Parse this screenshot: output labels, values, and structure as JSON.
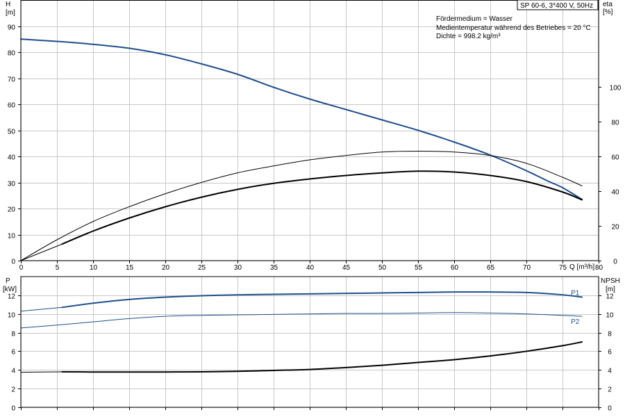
{
  "header": {
    "model": "SP 60-6, 3*400 V, 50Hz",
    "info_lines": [
      "Fördermedium = Wasser",
      "Medientemperatur während des Betriebes = 20 °C",
      "Dichte = 998.2 kg/m³"
    ]
  },
  "colors": {
    "blue": "#1f4e8c",
    "black": "#000000",
    "grid": "#c8c8c8"
  },
  "chart_data": [
    {
      "type": "line",
      "panel": "head_efficiency",
      "xlabel": "Q [m³/h]",
      "x_unit_label": "Q [m³/h]",
      "ylabel": "H",
      "ylabel_unit": "[m]",
      "y2label": "eta",
      "y2label_unit": "[%]",
      "xlim": [
        0,
        80
      ],
      "ylim": [
        0,
        100
      ],
      "y2lim": [
        0,
        150
      ],
      "x_ticks": [
        0,
        5,
        10,
        15,
        20,
        25,
        30,
        35,
        40,
        45,
        50,
        55,
        60,
        65,
        70,
        75,
        80
      ],
      "y_ticks": [
        0,
        10,
        20,
        30,
        40,
        50,
        60,
        70,
        80,
        90
      ],
      "y2_ticks": [
        0,
        20,
        40,
        60,
        80,
        100
      ],
      "grid": true,
      "series": [
        {
          "axis": "left",
          "color": "#1f4e8c",
          "width": 2,
          "x": [
            0,
            5.7,
            10,
            15,
            20,
            25,
            30,
            35,
            40,
            45,
            50,
            55,
            60,
            65,
            70,
            73,
            75,
            77.7
          ],
          "y": [
            85,
            84,
            83,
            81.5,
            79,
            75.5,
            71.5,
            66.5,
            62,
            58,
            54,
            50,
            45.5,
            40.5,
            34.5,
            30.5,
            28,
            23.5
          ]
        },
        {
          "axis": "left",
          "color": "#1f4e8c",
          "width": 1,
          "x": [
            0,
            5.7,
            10,
            15,
            20,
            25,
            30,
            35,
            40,
            45,
            50,
            55,
            60,
            65,
            70,
            73,
            75,
            77.7
          ],
          "y": [
            85,
            84,
            83,
            81.5,
            79,
            75.5,
            71.5,
            66.5,
            62,
            58,
            54,
            50,
            45.5,
            40.5,
            34.5,
            30.5,
            28,
            23.5
          ]
        },
        {
          "axis": "right",
          "color": "#000000",
          "width": 1,
          "x": [
            0,
            5,
            10,
            15,
            20,
            25,
            30,
            35,
            40,
            45,
            50,
            55,
            60,
            65,
            70,
            75,
            77.7
          ],
          "y": [
            0,
            12,
            22.5,
            31,
            38.5,
            45,
            50.5,
            54.5,
            58,
            60.5,
            62.5,
            63,
            62.5,
            60.5,
            56,
            48,
            43
          ]
        },
        {
          "axis": "right",
          "color": "#000000",
          "width": 2,
          "x": [
            5.7,
            10,
            15,
            20,
            25,
            30,
            35,
            40,
            45,
            50,
            55,
            60,
            65,
            70,
            75,
            77.7
          ],
          "y": [
            9.5,
            17,
            24.5,
            31,
            36.5,
            41,
            44.5,
            47,
            49,
            50.5,
            51.5,
            51,
            49,
            45.5,
            39.5,
            35
          ]
        },
        {
          "axis": "right",
          "color": "#000000",
          "width": 1,
          "x": [
            0,
            5.7
          ],
          "y": [
            0,
            9.5
          ]
        }
      ]
    },
    {
      "type": "line",
      "panel": "power_npsh",
      "ylabel": "P",
      "ylabel_unit": "[kW]",
      "y2label": "NPSH",
      "y2label_unit": "[m]",
      "xlim": [
        0,
        80
      ],
      "ylim": [
        0,
        14
      ],
      "y2lim": [
        0,
        14
      ],
      "y_ticks": [
        0,
        2,
        4,
        6,
        8,
        10,
        12
      ],
      "y2_ticks": [
        0,
        2,
        4,
        6,
        8,
        10,
        12
      ],
      "grid": true,
      "series": [
        {
          "name": "P1",
          "axis": "left",
          "color": "#1f4e8c",
          "width": 2,
          "x": [
            5.7,
            10,
            15,
            20,
            25,
            30,
            35,
            40,
            45,
            50,
            55,
            60,
            65,
            70,
            75,
            77.7
          ],
          "y": [
            10.7,
            11.15,
            11.55,
            11.8,
            11.95,
            12.05,
            12.1,
            12.15,
            12.2,
            12.25,
            12.3,
            12.35,
            12.35,
            12.3,
            12.05,
            11.8
          ],
          "lead": {
            "x": [
              0,
              5.7
            ],
            "y": [
              10.3,
              10.7
            ]
          }
        },
        {
          "name": "P2",
          "axis": "left",
          "color": "#1f4e8c",
          "width": 1,
          "x": [
            0,
            5.7,
            10,
            15,
            20,
            25,
            30,
            35,
            40,
            45,
            50,
            55,
            60,
            65,
            70,
            75,
            77.7
          ],
          "y": [
            8.5,
            8.85,
            9.15,
            9.5,
            9.75,
            9.85,
            9.9,
            9.95,
            10.0,
            10.05,
            10.05,
            10.1,
            10.15,
            10.1,
            10.0,
            9.85,
            9.75
          ]
        },
        {
          "axis": "right",
          "color": "#000000",
          "width": 2,
          "x": [
            5.7,
            10,
            15,
            20,
            25,
            30,
            35,
            40,
            45,
            50,
            55,
            60,
            65,
            70,
            75,
            77.7
          ],
          "y": [
            3.8,
            3.78,
            3.78,
            3.78,
            3.8,
            3.85,
            3.95,
            4.05,
            4.25,
            4.5,
            4.8,
            5.1,
            5.5,
            6.0,
            6.6,
            7.0
          ],
          "lead": {
            "x": [
              0,
              5.7
            ],
            "y": [
              3.75,
              3.8
            ]
          }
        }
      ]
    }
  ]
}
